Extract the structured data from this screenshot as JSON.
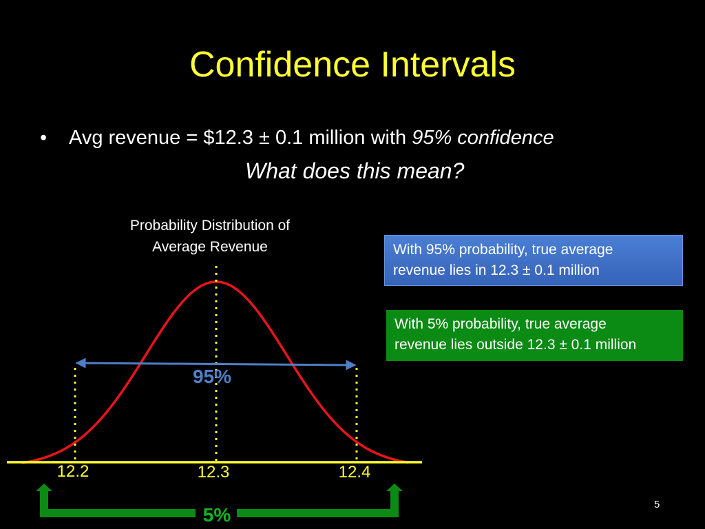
{
  "slide": {
    "title": "Confidence Intervals",
    "bullet": {
      "prefix": "Avg revenue = $12.3 ± 0.1 million with ",
      "emphasis": "95% confidence"
    },
    "question": "What does this mean?",
    "distribution_caption_line1": "Probability Distribution of",
    "distribution_caption_line2": "Average Revenue",
    "box_inside_line1": "With 95% probability, true average",
    "box_inside_line2": "revenue lies in 12.3 ± 0.1 million",
    "box_outside_line1": "With 5% probability, true average",
    "box_outside_line2": "revenue lies outside 12.3 ± 0.1 million",
    "page_number": "5"
  },
  "diagram": {
    "tick_left": "12.2",
    "tick_center": "12.3",
    "tick_right": "12.4",
    "inside_label": "95%",
    "outside_label": "5%",
    "colors": {
      "curve": "#e8141b",
      "axis": "#ffff33",
      "span_arrow": "#4f7fc9",
      "tail_arrow": "#0b8a14",
      "blue_box": "#3f72c8",
      "green_box": "#0b8a14"
    }
  }
}
